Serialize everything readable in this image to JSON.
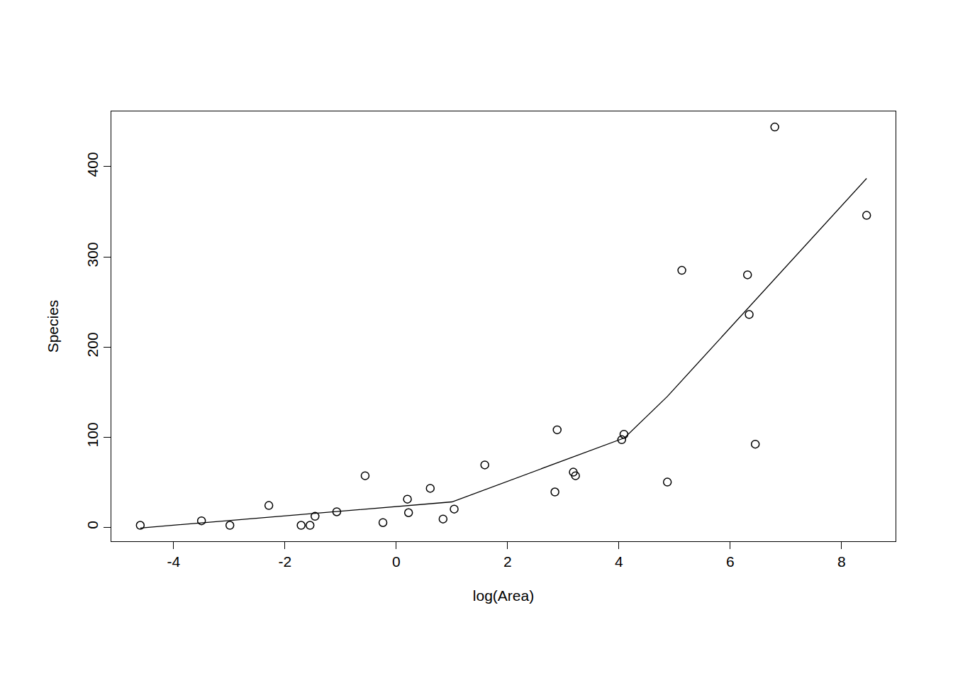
{
  "chart_data": {
    "type": "scatter",
    "xlabel": "log(Area)",
    "ylabel": "Species",
    "xlim": [
      -5.12,
      8.97
    ],
    "xticks": [
      -4,
      -2,
      0,
      2,
      4,
      6,
      8
    ],
    "ylim": [
      -15.7,
      461.4
    ],
    "yticks": [
      0,
      100,
      200,
      300,
      400
    ],
    "grid": false,
    "series": [
      {
        "type": "scatter",
        "marker": "open_circle",
        "color": "#000000",
        "x": [
          -4.6,
          -3.5,
          -2.99,
          -2.29,
          -1.71,
          -1.55,
          -1.46,
          -1.07,
          -0.56,
          -0.24,
          0.2,
          0.22,
          0.61,
          0.84,
          1.04,
          1.59,
          2.85,
          2.89,
          3.18,
          3.22,
          4.05,
          4.09,
          4.87,
          5.13,
          6.31,
          6.34,
          6.45,
          6.8,
          8.45
        ],
        "values": [
          2,
          7,
          2,
          24,
          2,
          2,
          12,
          17,
          57,
          5,
          31,
          16,
          43,
          9,
          20,
          69,
          39,
          108,
          61,
          57,
          97,
          103,
          50,
          285,
          280,
          236,
          92,
          444,
          346
        ]
      },
      {
        "type": "line",
        "line_style": "solid",
        "color": "#000000",
        "x": [
          -4.6,
          1.0,
          4.1,
          4.87,
          8.45
        ],
        "values": [
          -1,
          28,
          99,
          145,
          387
        ]
      }
    ]
  }
}
